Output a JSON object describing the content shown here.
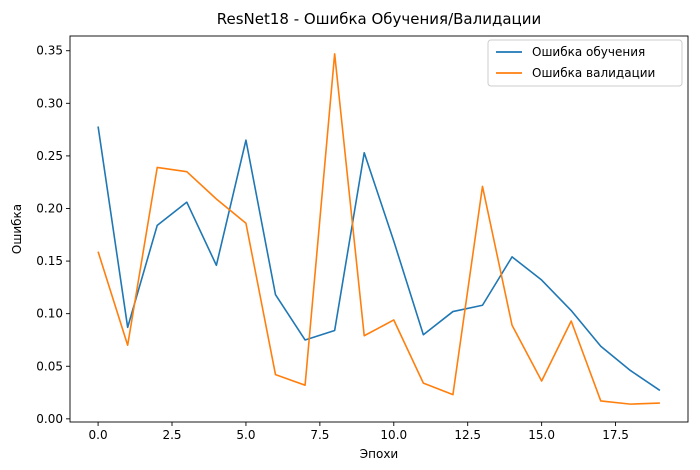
{
  "chart_data": {
    "type": "line",
    "title": "ResNet18 - Ошибка Обучения/Валидации",
    "xlabel": "Эпохи",
    "ylabel": "Ошибка",
    "xlim": [
      -0.95,
      19.95
    ],
    "ylim": [
      -0.003,
      0.364
    ],
    "xticks": [
      0,
      2.5,
      5,
      7.5,
      10,
      12.5,
      15,
      17.5
    ],
    "xtick_labels": [
      "0.0",
      "2.5",
      "5.0",
      "7.5",
      "10.0",
      "12.5",
      "15.0",
      "17.5"
    ],
    "yticks": [
      0,
      0.05,
      0.1,
      0.15,
      0.2,
      0.25,
      0.3,
      0.35
    ],
    "ytick_labels": [
      "0.00",
      "0.05",
      "0.10",
      "0.15",
      "0.20",
      "0.25",
      "0.30",
      "0.35"
    ],
    "x": [
      0,
      1,
      2,
      3,
      4,
      5,
      6,
      7,
      8,
      9,
      10,
      11,
      12,
      13,
      14,
      15,
      16,
      17,
      18,
      19
    ],
    "grid": false,
    "legend_position": "top-right",
    "series": [
      {
        "name": "Ошибка обучения",
        "color": "#1f77b4",
        "values": [
          0.278,
          0.087,
          0.184,
          0.206,
          0.146,
          0.265,
          0.118,
          0.075,
          0.084,
          0.253,
          0.169,
          0.08,
          0.102,
          0.108,
          0.154,
          0.132,
          0.103,
          0.069,
          0.046,
          0.027
        ]
      },
      {
        "name": "Ошибка валидации",
        "color": "#ff7f0e",
        "values": [
          0.159,
          0.07,
          0.239,
          0.235,
          0.209,
          0.186,
          0.042,
          0.032,
          0.347,
          0.079,
          0.094,
          0.034,
          0.023,
          0.221,
          0.089,
          0.036,
          0.093,
          0.017,
          0.014,
          0.015
        ]
      }
    ]
  }
}
